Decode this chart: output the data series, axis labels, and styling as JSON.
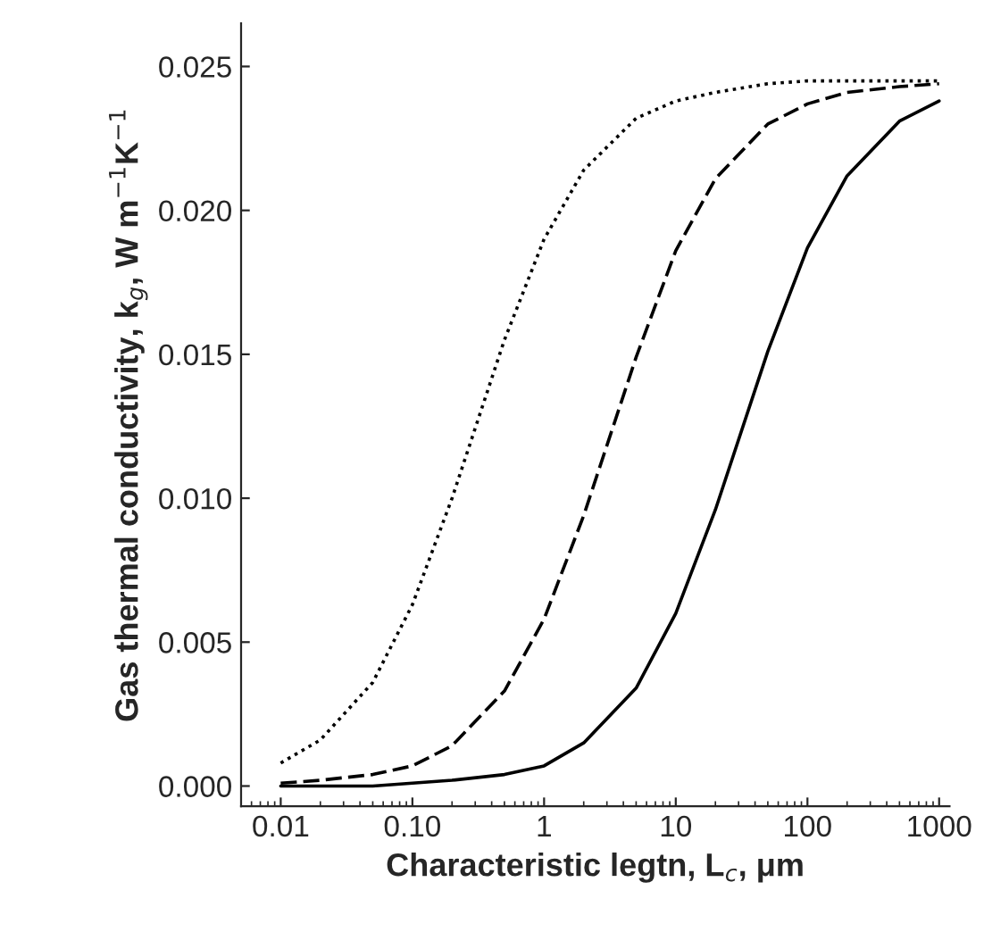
{
  "chart_data": {
    "type": "line",
    "xlabel": "Characteristic legtn, L$_{c}$, μm",
    "ylabel": "Gas thermal conductivity, k$_{g}$, W m$^{−1}$K$^{−1}$",
    "log": "x",
    "grid": false,
    "x": [
      0.01,
      0.02,
      0.05,
      0.1,
      0.2,
      0.5,
      1,
      2,
      5,
      10,
      20,
      50,
      100,
      200,
      500,
      1000
    ],
    "xlim": [
      0.005,
      1200
    ],
    "xticks": [
      0.01,
      {
        "value": 0.1,
        "label": "0.10"
      },
      1,
      10,
      100,
      1000
    ],
    "ylim": [
      -0.0007,
      0.0265
    ],
    "yticks": [
      {
        "value": 0,
        "label": "0.000"
      },
      {
        "value": 0.005,
        "label": "0.005"
      },
      {
        "value": 0.01,
        "label": "0.010"
      },
      {
        "value": 0.015,
        "label": "0.015"
      },
      {
        "value": 0.02,
        "label": "0.020"
      },
      {
        "value": 0.025,
        "label": "0.025"
      }
    ],
    "series": [
      {
        "color": "#000000",
        "line_style": "dotted",
        "values": [
          0.0008,
          0.0016,
          0.0036,
          0.0063,
          0.01,
          0.0155,
          0.019,
          0.0214,
          0.0232,
          0.0238,
          0.0241,
          0.0244,
          0.0245,
          0.0245,
          0.0245,
          0.0245
        ]
      },
      {
        "color": "#000000",
        "line_style": "dashed",
        "values": [
          0.0001,
          0.0002,
          0.0004,
          0.0007,
          0.0014,
          0.0033,
          0.0058,
          0.0094,
          0.0149,
          0.0186,
          0.0211,
          0.023,
          0.0237,
          0.0241,
          0.0243,
          0.0244
        ]
      },
      {
        "color": "#000000",
        "line_style": "solid",
        "values": [
          0.0,
          0.0,
          0.0,
          0.0001,
          0.0002,
          0.0004,
          0.0007,
          0.0015,
          0.0034,
          0.006,
          0.0096,
          0.0151,
          0.0187,
          0.0212,
          0.0231,
          0.0238
        ]
      }
    ]
  }
}
